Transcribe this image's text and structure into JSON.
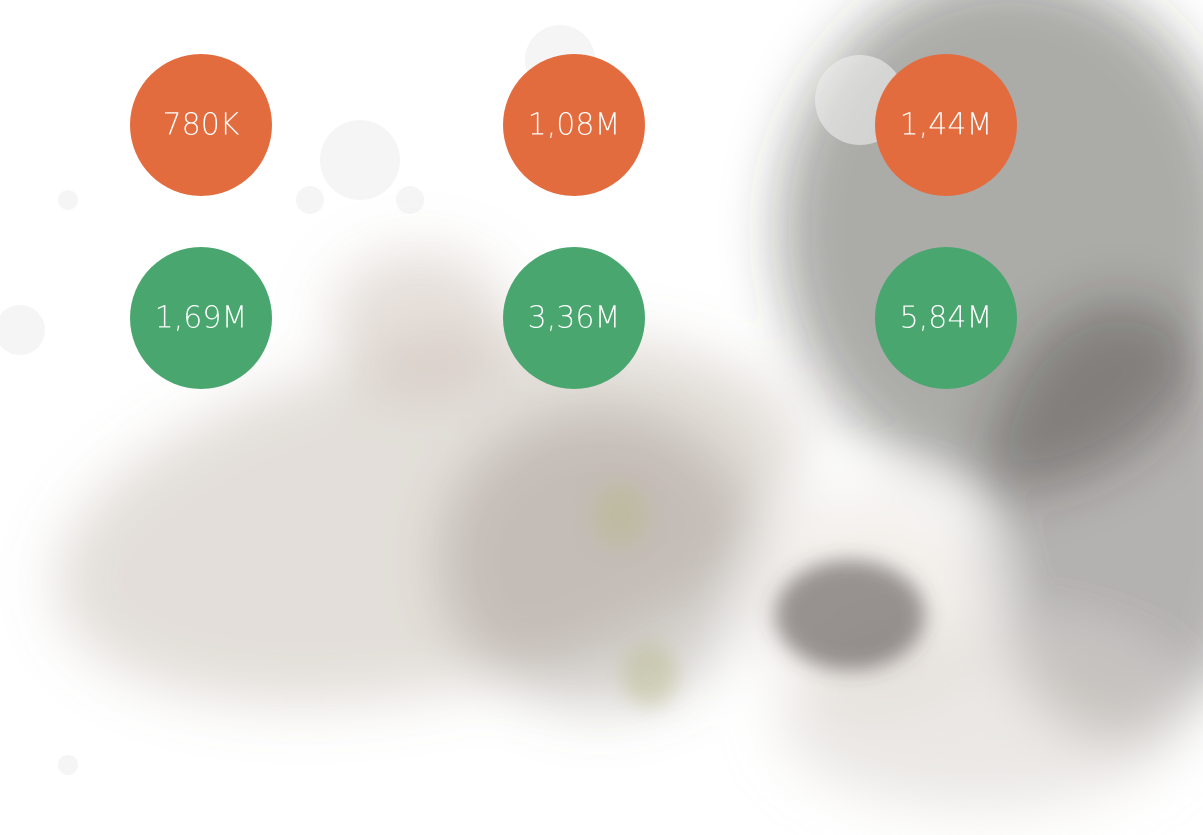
{
  "rows": [
    {
      "color": "#e36c3f",
      "items": [
        "780K",
        "1,08M",
        "1,44M"
      ]
    },
    {
      "color": "#4aa66f",
      "items": [
        "1,69M",
        "3,36M",
        "5,84M"
      ]
    }
  ]
}
